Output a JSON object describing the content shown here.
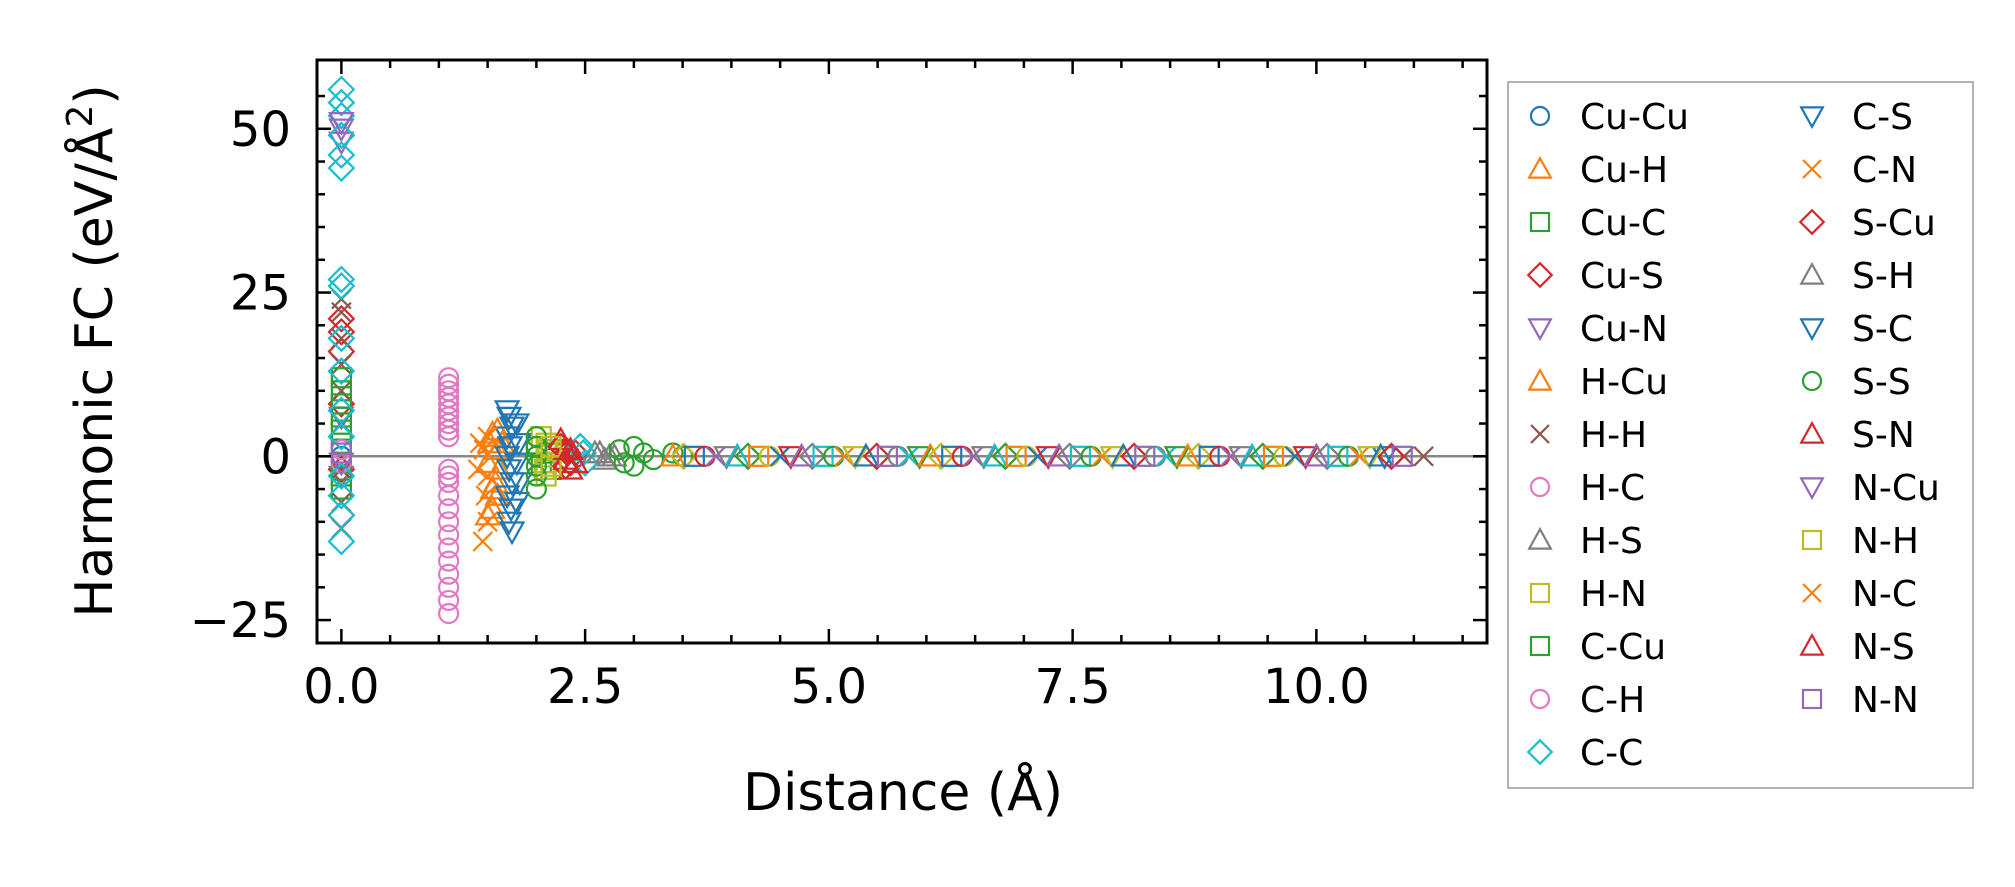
{
  "chart_data": {
    "type": "scatter",
    "title": "",
    "xlabel": "Distance (Å)",
    "ylabel": "Harmonic FC (eV/Å²)",
    "ylabel_base": "Harmonic FC (eV/Å",
    "ylabel_sup": "2",
    "ylabel_close": ")",
    "xlim": [
      -0.25,
      11.75
    ],
    "ylim": [
      -28.5,
      60.5
    ],
    "xticks": [
      0.0,
      2.5,
      5.0,
      7.5,
      10.0
    ],
    "xtick_labels": [
      "0.0",
      "2.5",
      "5.0",
      "7.5",
      "10.0"
    ],
    "yticks": [
      -25,
      0,
      25,
      50
    ],
    "ytick_labels": [
      "−25",
      "0",
      "25",
      "50"
    ],
    "zero_line": true,
    "legend_position": "outside-right",
    "series": [
      {
        "name": "Cu-Cu",
        "marker": "circle",
        "color": "#1f77b4",
        "points": [
          [
            0.0,
            0.0
          ]
        ]
      },
      {
        "name": "Cu-H",
        "marker": "triangle-up",
        "color": "#ff7f0e",
        "points": [
          [
            1.55,
            -8
          ],
          [
            1.6,
            -6
          ],
          [
            1.58,
            -4
          ],
          [
            1.62,
            -2
          ],
          [
            1.6,
            1
          ],
          [
            1.65,
            2
          ],
          [
            1.57,
            3
          ],
          [
            1.6,
            4
          ]
        ]
      },
      {
        "name": "Cu-C",
        "marker": "square",
        "color": "#2ca02c",
        "points": [
          [
            2.0,
            1.5
          ],
          [
            2.05,
            -1
          ],
          [
            2.1,
            0.5
          ],
          [
            2.15,
            -2
          ],
          [
            2.2,
            1
          ]
        ]
      },
      {
        "name": "Cu-S",
        "marker": "diamond",
        "color": "#d62728",
        "points": [
          [
            0.0,
            21
          ],
          [
            0.0,
            19
          ],
          [
            0.0,
            16
          ],
          [
            0.0,
            8
          ],
          [
            0.0,
            -2
          ],
          [
            0.0,
            -9
          ],
          [
            2.3,
            1
          ],
          [
            2.35,
            -1
          ],
          [
            2.4,
            0.5
          ]
        ]
      },
      {
        "name": "Cu-N",
        "marker": "triangle-down",
        "color": "#9467bd",
        "points": [
          [
            0.0,
            50
          ],
          [
            0.0,
            48
          ],
          [
            0.0,
            6
          ],
          [
            0.0,
            -3
          ]
        ]
      },
      {
        "name": "H-Cu",
        "marker": "triangle-up",
        "color": "#ff7f0e",
        "points": [
          [
            1.5,
            -9
          ],
          [
            1.55,
            -5
          ],
          [
            1.5,
            -1
          ],
          [
            1.52,
            2
          ],
          [
            1.55,
            3.5
          ]
        ]
      },
      {
        "name": "H-H",
        "marker": "x",
        "color": "#8c564b",
        "points": [
          [
            0.0,
            24
          ],
          [
            0.0,
            22
          ],
          [
            0.0,
            18
          ],
          [
            0.0,
            14
          ],
          [
            0.0,
            10
          ],
          [
            0.0,
            5
          ],
          [
            0.0,
            -2
          ],
          [
            0.0,
            -7
          ],
          [
            0.0,
            -11
          ],
          [
            10.9,
            0
          ],
          [
            11.1,
            0
          ]
        ]
      },
      {
        "name": "H-C",
        "marker": "circle",
        "color": "#e377c2",
        "points": [
          [
            1.1,
            12
          ],
          [
            1.1,
            11
          ],
          [
            1.1,
            10
          ],
          [
            1.1,
            9
          ],
          [
            1.1,
            8
          ],
          [
            1.1,
            7
          ],
          [
            1.1,
            6
          ],
          [
            1.1,
            5
          ],
          [
            1.1,
            4
          ],
          [
            1.1,
            3
          ],
          [
            1.1,
            -2
          ],
          [
            1.1,
            -3
          ],
          [
            1.1,
            -4
          ],
          [
            1.1,
            -6
          ],
          [
            1.1,
            -8
          ],
          [
            1.1,
            -10
          ],
          [
            1.1,
            -12
          ],
          [
            1.1,
            -14
          ],
          [
            1.1,
            -16
          ],
          [
            1.1,
            -18
          ],
          [
            1.1,
            -20
          ],
          [
            1.1,
            -22
          ],
          [
            1.1,
            -24
          ]
        ]
      },
      {
        "name": "H-S",
        "marker": "triangle-up",
        "color": "#7f7f7f",
        "points": [
          [
            2.6,
            0.5
          ],
          [
            2.7,
            -0.5
          ],
          [
            2.8,
            0
          ]
        ]
      },
      {
        "name": "H-N",
        "marker": "square",
        "color": "#bcbd22",
        "points": [
          [
            2.05,
            3
          ],
          [
            2.1,
            2
          ],
          [
            2.12,
            1
          ],
          [
            2.1,
            -1
          ],
          [
            2.08,
            -2
          ],
          [
            2.1,
            -3
          ]
        ]
      },
      {
        "name": "C-Cu",
        "marker": "square",
        "color": "#2ca02c",
        "points": [
          [
            0.0,
            12
          ],
          [
            0.0,
            10
          ],
          [
            0.0,
            8
          ],
          [
            0.0,
            6
          ],
          [
            0.0,
            4
          ],
          [
            0.0,
            2
          ],
          [
            0.0,
            -1
          ],
          [
            0.0,
            -3
          ],
          [
            0.0,
            -5
          ]
        ]
      },
      {
        "name": "C-H",
        "marker": "circle",
        "color": "#e377c2",
        "points": [
          [
            0.0,
            -1
          ],
          [
            0.0,
            1
          ]
        ]
      },
      {
        "name": "C-C",
        "marker": "diamond",
        "color": "#17becf",
        "points": [
          [
            0.0,
            56
          ],
          [
            0.0,
            54
          ],
          [
            0.0,
            52
          ],
          [
            0.0,
            49
          ],
          [
            0.0,
            46
          ],
          [
            0.0,
            44
          ],
          [
            0.0,
            27
          ],
          [
            0.0,
            26
          ],
          [
            0.0,
            18
          ],
          [
            0.0,
            13
          ],
          [
            0.0,
            7
          ],
          [
            0.0,
            3
          ],
          [
            0.0,
            -3
          ],
          [
            0.0,
            -6
          ],
          [
            0.0,
            -9
          ],
          [
            0.0,
            -13
          ],
          [
            2.45,
            1.5
          ],
          [
            2.5,
            -1
          ],
          [
            2.48,
            0.5
          ]
        ]
      },
      {
        "name": "C-S",
        "marker": "triangle-down",
        "color": "#1f77b4",
        "points": [
          [
            1.7,
            7
          ],
          [
            1.72,
            6
          ],
          [
            1.75,
            4.5
          ],
          [
            1.7,
            3
          ],
          [
            1.73,
            1.5
          ],
          [
            1.7,
            0
          ],
          [
            1.72,
            -2
          ],
          [
            1.75,
            -4
          ],
          [
            1.7,
            -6
          ],
          [
            1.74,
            -8
          ],
          [
            1.72,
            -10
          ],
          [
            1.75,
            -11.5
          ],
          [
            10.7,
            0
          ]
        ]
      },
      {
        "name": "C-N",
        "marker": "x",
        "color": "#ff7f0e",
        "points": [
          [
            1.45,
            -13
          ],
          [
            1.5,
            -10
          ],
          [
            1.48,
            -6
          ],
          [
            1.5,
            -3
          ],
          [
            1.46,
            1
          ],
          [
            1.5,
            3
          ]
        ]
      },
      {
        "name": "S-Cu",
        "marker": "diamond",
        "color": "#d62728",
        "points": [
          [
            2.25,
            1.5
          ],
          [
            2.3,
            -1.5
          ],
          [
            2.32,
            0.5
          ]
        ]
      },
      {
        "name": "S-H",
        "marker": "triangle-up",
        "color": "#7f7f7f",
        "points": [
          [
            2.65,
            0.5
          ],
          [
            2.75,
            0
          ]
        ]
      },
      {
        "name": "S-C",
        "marker": "triangle-down",
        "color": "#1f77b4",
        "points": [
          [
            1.8,
            5
          ],
          [
            1.82,
            2
          ],
          [
            1.8,
            -1
          ],
          [
            1.83,
            -4
          ],
          [
            1.8,
            -7
          ]
        ]
      },
      {
        "name": "S-S",
        "marker": "circle",
        "color": "#2ca02c",
        "points": [
          [
            2.0,
            3
          ],
          [
            2.0,
            1.5
          ],
          [
            2.0,
            0
          ],
          [
            2.0,
            -1.5
          ],
          [
            2.0,
            -3
          ],
          [
            2.0,
            -5
          ],
          [
            2.85,
            1
          ],
          [
            2.9,
            -1
          ],
          [
            3.0,
            1.5
          ],
          [
            3.0,
            -1.5
          ],
          [
            3.1,
            0.5
          ],
          [
            3.2,
            -0.5
          ],
          [
            3.4,
            0.5
          ],
          [
            3.5,
            0
          ]
        ]
      },
      {
        "name": "S-N",
        "marker": "triangle-up",
        "color": "#d62728",
        "points": [
          [
            2.25,
            2.5
          ],
          [
            2.3,
            1
          ],
          [
            2.3,
            -0.5
          ],
          [
            2.35,
            -2
          ]
        ]
      },
      {
        "name": "N-Cu",
        "marker": "triangle-down",
        "color": "#9467bd",
        "points": [
          [
            0.0,
            51
          ],
          [
            0.0,
            -1
          ]
        ]
      },
      {
        "name": "N-H",
        "marker": "square",
        "color": "#bcbd22",
        "points": [
          [
            2.15,
            1.5
          ],
          [
            2.15,
            -1.5
          ]
        ]
      },
      {
        "name": "N-C",
        "marker": "x",
        "color": "#ff7f0e",
        "points": [
          [
            1.4,
            -2
          ],
          [
            1.42,
            2
          ]
        ]
      },
      {
        "name": "N-S",
        "marker": "triangle-up",
        "color": "#d62728",
        "points": [
          [
            2.35,
            1
          ],
          [
            2.4,
            -1
          ]
        ]
      },
      {
        "name": "N-N",
        "marker": "square",
        "color": "#9467bd",
        "points": [
          [
            0.0,
            0.5
          ]
        ]
      }
    ]
  }
}
